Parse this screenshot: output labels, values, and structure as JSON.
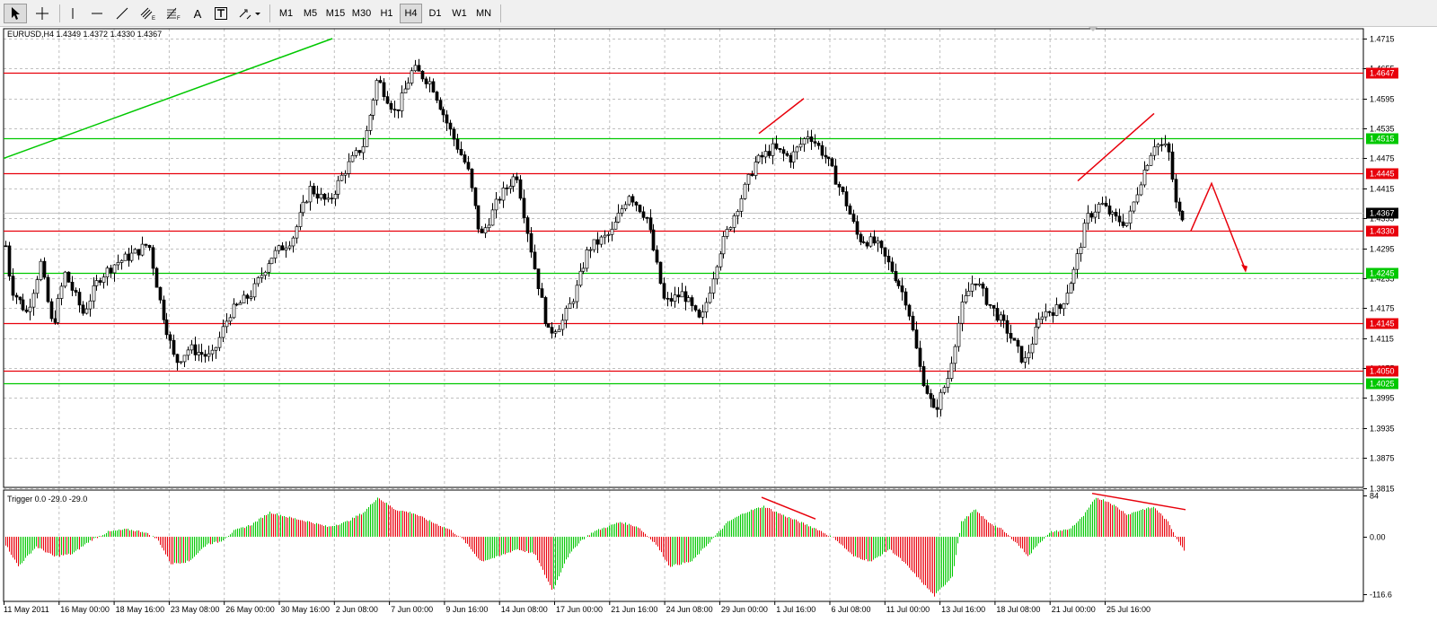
{
  "toolbar": {
    "tools": [
      "cursor-icon",
      "crosshair-icon",
      "vertical-line-icon",
      "horizontal-line-icon",
      "trendline-icon",
      "equidistant-channel-icon",
      "fibonacci-icon",
      "text-icon",
      "text-label-icon",
      "arrows-icon"
    ],
    "text_tool_label": "A",
    "timeframes": [
      "M1",
      "M5",
      "M15",
      "M30",
      "H1",
      "H4",
      "D1",
      "W1",
      "MN"
    ],
    "selected_timeframe": "H4"
  },
  "chart": {
    "info": "EURUSD,H4  1.4349 1.4372 1.4330 1.4367",
    "indicator_info": "Trigger 0.0 -29.0 -29.0",
    "price_ticks": [
      "1.4715",
      "1.4655",
      "1.4595",
      "1.4535",
      "1.4475",
      "1.4415",
      "1.4355",
      "1.4295",
      "1.4235",
      "1.4175",
      "1.4115",
      "1.4055",
      "1.3995",
      "1.3935",
      "1.3875",
      "1.3815"
    ],
    "tagged_levels": [
      {
        "label": "1.4647",
        "price": 1.4647,
        "color": "#e8000b"
      },
      {
        "label": "1.4515",
        "price": 1.4515,
        "color": "#00c800"
      },
      {
        "label": "1.4445",
        "price": 1.4445,
        "color": "#e8000b"
      },
      {
        "label": "1.4330",
        "price": 1.433,
        "color": "#e8000b"
      },
      {
        "label": "1.4245",
        "price": 1.4245,
        "color": "#00c800"
      },
      {
        "label": "1.4145",
        "price": 1.4145,
        "color": "#e8000b"
      },
      {
        "label": "1.4050",
        "price": 1.405,
        "color": "#e8000b"
      },
      {
        "label": "1.4025",
        "price": 1.4025,
        "color": "#00c800"
      }
    ],
    "current_price": "1.4367",
    "indicator_ticks": [
      "84",
      "0.00",
      "-116.6"
    ],
    "time_labels": [
      "11 May 2011",
      "16 May 00:00",
      "18 May 16:00",
      "23 May 08:00",
      "26 May 00:00",
      "30 May 16:00",
      "2 Jun 08:00",
      "7 Jun 00:00",
      "9 Jun 16:00",
      "14 Jun 08:00",
      "17 Jun 00:00",
      "21 Jun 16:00",
      "24 Jun 08:00",
      "29 Jun 00:00",
      "1 Jul 16:00",
      "6 Jul 08:00",
      "11 Jul 00:00",
      "13 Jul 16:00",
      "18 Jul 08:00",
      "21 Jul 00:00",
      "25 Jul 16:00"
    ]
  },
  "colors": {
    "bull": "#00c800",
    "bear": "#e8000b",
    "grid": "#c0c0c0",
    "candle": "#000000"
  }
}
